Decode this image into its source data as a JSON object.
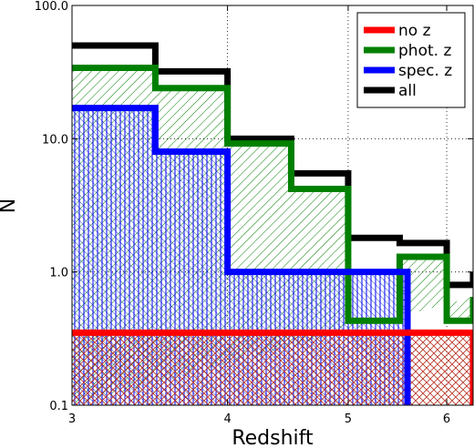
{
  "chart_data": {
    "type": "histogram-step",
    "title": "",
    "xlabel": "Redshift",
    "ylabel": "N",
    "xscale": "log",
    "yscale": "log",
    "xlim": [
      3,
      6.3
    ],
    "ylim": [
      0.1,
      100.0
    ],
    "x_ticks": [
      3,
      4,
      5,
      6
    ],
    "x_tick_labels": [
      "3",
      "4",
      "5",
      "6"
    ],
    "y_ticks": [
      0.1,
      1.0,
      10.0,
      100.0
    ],
    "y_tick_labels": [
      "0.1",
      "1.0",
      "10.0",
      "100.0"
    ],
    "grid": true,
    "legend_position": "top-right",
    "series": [
      {
        "name": "all",
        "color": "#000000",
        "hatch": "none",
        "x": [
          3.0,
          3.5,
          4.0,
          4.5,
          5.0,
          5.5,
          6.0,
          6.3
        ],
        "values": [
          50,
          32,
          10,
          5.5,
          1.8,
          1.65,
          0.8,
          1.0
        ]
      },
      {
        "name": "phot. z",
        "color": "#008000",
        "hatch": "diagonal",
        "x": [
          3.0,
          3.5,
          4.0,
          4.5,
          5.0,
          5.5,
          6.0,
          6.3
        ],
        "values": [
          34,
          24,
          9.2,
          4.2,
          0.43,
          1.3,
          0.43,
          0.65
        ]
      },
      {
        "name": "spec. z",
        "color": "#0000ff",
        "hatch": "antidiagonal-vertical",
        "x": [
          3.0,
          3.5,
          4.0,
          5.58
        ],
        "values": [
          17,
          8,
          1.0
        ]
      },
      {
        "name": "no z",
        "color": "#ff0000",
        "hatch": "crosshatch",
        "x": [
          3.0,
          6.3
        ],
        "values": [
          0.35
        ]
      }
    ]
  }
}
